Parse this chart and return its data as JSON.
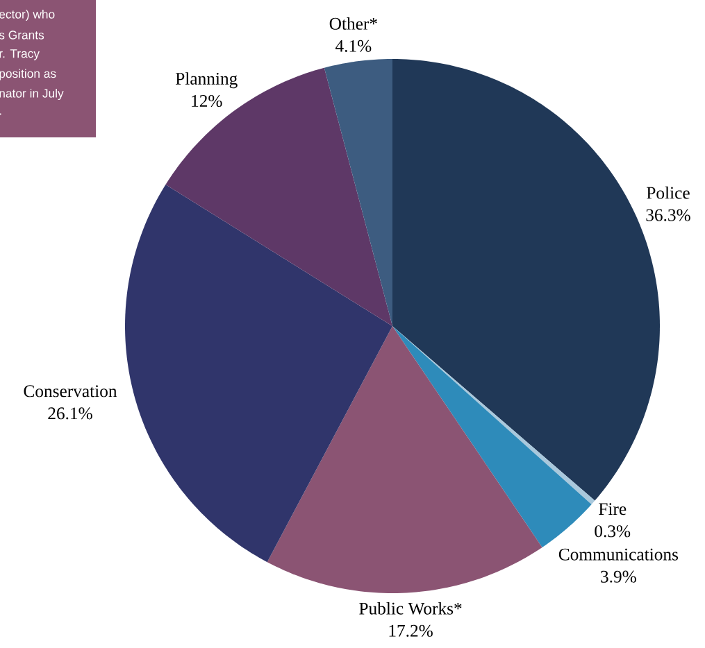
{
  "chart_data": {
    "type": "pie",
    "categories": [
      "Police",
      "Fire",
      "Communications",
      "Public Works*",
      "Conservation",
      "Planning",
      "Other*"
    ],
    "values": [
      36.3,
      0.3,
      3.9,
      17.2,
      26.1,
      12,
      4.1
    ],
    "value_labels": [
      "36.3%",
      "0.3%",
      "3.9%",
      "17.2%",
      "26.1%",
      "12%",
      "4.1%"
    ],
    "colors": [
      "#203857",
      "#a9c8dc",
      "#2e8bba",
      "#8b5473",
      "#30356b",
      "#5e3867",
      "#3d5c80"
    ],
    "annotations": [
      "ector) who",
      "s Grants",
      "r. Tracy",
      "position as",
      "nator in July",
      "."
    ]
  }
}
